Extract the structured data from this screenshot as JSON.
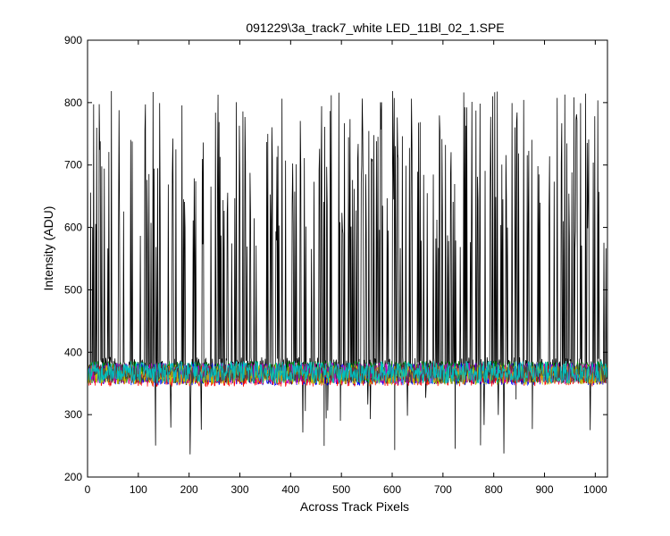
{
  "chart_data": {
    "type": "line",
    "title": "091229\\3a_track7_white LED_11Bl_02_1.SPE",
    "xlabel": "Across Track Pixels",
    "ylabel": "Intensity (ADU)",
    "xlim": [
      0,
      1024
    ],
    "ylim": [
      200,
      900
    ],
    "xticks": [
      0,
      100,
      200,
      300,
      400,
      500,
      600,
      700,
      800,
      900,
      1000
    ],
    "yticks": [
      200,
      300,
      400,
      500,
      600,
      700,
      800,
      900
    ],
    "grid": false,
    "legend": "none",
    "series": [
      {
        "color": "#000000",
        "style": "spiky",
        "baseline": 370,
        "noise": 22,
        "spike_low": 560,
        "spike_high": 820,
        "spike_density": 0.22,
        "dip_min": 230,
        "seed": 7
      },
      {
        "color": "#0000ff",
        "style": "noise",
        "baseline": 365,
        "noise": 18,
        "seed": 11
      },
      {
        "color": "#008000",
        "style": "noise",
        "baseline": 368,
        "noise": 18,
        "seed": 23
      },
      {
        "color": "#ff0000",
        "style": "noise",
        "baseline": 362,
        "noise": 17,
        "seed": 31
      },
      {
        "color": "#bf00bf",
        "style": "noise",
        "baseline": 366,
        "noise": 17,
        "seed": 43
      },
      {
        "color": "#bfbf00",
        "style": "noise",
        "baseline": 364,
        "noise": 16,
        "seed": 53
      },
      {
        "color": "#404040",
        "style": "noise",
        "baseline": 366,
        "noise": 16,
        "seed": 61
      },
      {
        "color": "#00bfbf",
        "style": "noise",
        "baseline": 368,
        "noise": 18,
        "seed": 71
      }
    ]
  }
}
